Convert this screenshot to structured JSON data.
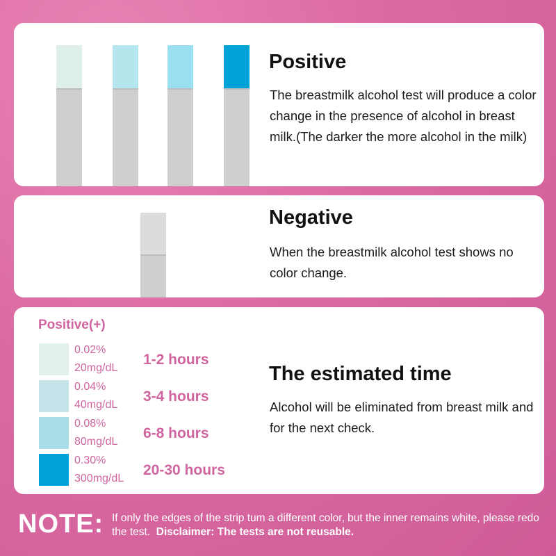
{
  "positive_section": {
    "title": "Positive",
    "description": "The breastmilk alcohol test will produce a color change in the presence of alcohol in breast milk.(The darker the more alcohol in the milk)",
    "strip_colors": [
      "#dff0ec",
      "#b5e6ee",
      "#9be0f1",
      "#00a3d7"
    ]
  },
  "negative_section": {
    "title": "Negative",
    "description": "When the breastmilk alcohol test shows no color change.",
    "strip_color": "#dcdcdc"
  },
  "legend": {
    "title": "Positive(+)",
    "items": [
      {
        "percent": "0.02%",
        "mg": "20mg/dL",
        "hours": "1-2 hours",
        "color": "#e3f1ee"
      },
      {
        "percent": "0.04%",
        "mg": "40mg/dL",
        "hours": "3-4 hours",
        "color": "#c5e4ea"
      },
      {
        "percent": "0.08%",
        "mg": "80mg/dL",
        "hours": "6-8 hours",
        "color": "#a9dde8"
      },
      {
        "percent": "0.30%",
        "mg": "300mg/dL",
        "hours": "20-30 hours",
        "color": "#00a3d8"
      }
    ]
  },
  "estimated_section": {
    "title": "The estimated time",
    "description": "Alcohol will be eliminated from breast milk and for the next check."
  },
  "note": {
    "label": "NOTE:",
    "text": "If only the edges of the strip tum a different color, but the inner remains white, please redo the test.",
    "disclaimer": "Disclaimer: The tests are not reusable."
  },
  "colors": {
    "background": "#da6aa2",
    "accent_pink": "#d0649f",
    "strip_gray": "#cfcfcf"
  }
}
